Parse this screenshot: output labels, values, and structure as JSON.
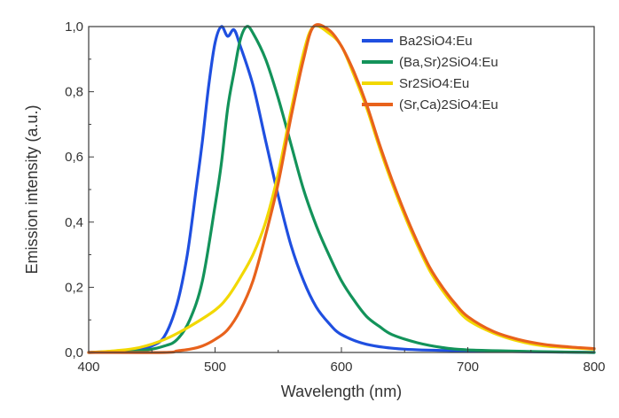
{
  "chart_data": {
    "type": "line",
    "xlabel": "Wavelength (nm)",
    "ylabel": "Emission intensity (a.u.)",
    "xlim": [
      400,
      800
    ],
    "ylim": [
      0.0,
      1.0
    ],
    "x_ticks": [
      "400",
      "500",
      "600",
      "700",
      "800"
    ],
    "y_ticks": [
      "0,0",
      "0,2",
      "0,4",
      "0,6",
      "0,8",
      "1,0"
    ],
    "grid": false,
    "legend_position": "top-right",
    "series": [
      {
        "name": "Ba2SiO4:Eu",
        "color": "#1f4fe0",
        "points": [
          [
            400,
            0.0
          ],
          [
            430,
            0.005
          ],
          [
            440,
            0.01
          ],
          [
            450,
            0.02
          ],
          [
            460,
            0.05
          ],
          [
            470,
            0.15
          ],
          [
            478,
            0.3
          ],
          [
            485,
            0.5
          ],
          [
            490,
            0.65
          ],
          [
            495,
            0.82
          ],
          [
            500,
            0.95
          ],
          [
            505,
            1.0
          ],
          [
            510,
            0.97
          ],
          [
            515,
            0.99
          ],
          [
            520,
            0.94
          ],
          [
            530,
            0.82
          ],
          [
            540,
            0.65
          ],
          [
            550,
            0.48
          ],
          [
            560,
            0.33
          ],
          [
            570,
            0.22
          ],
          [
            580,
            0.14
          ],
          [
            590,
            0.09
          ],
          [
            600,
            0.055
          ],
          [
            620,
            0.025
          ],
          [
            650,
            0.01
          ],
          [
            700,
            0.005
          ],
          [
            800,
            0.0
          ]
        ]
      },
      {
        "name": "(Ba,Sr)2SiO4:Eu",
        "color": "#13935a",
        "points": [
          [
            400,
            0.0
          ],
          [
            440,
            0.005
          ],
          [
            460,
            0.02
          ],
          [
            470,
            0.04
          ],
          [
            480,
            0.1
          ],
          [
            490,
            0.22
          ],
          [
            500,
            0.45
          ],
          [
            505,
            0.58
          ],
          [
            510,
            0.75
          ],
          [
            515,
            0.86
          ],
          [
            520,
            0.96
          ],
          [
            525,
            1.0
          ],
          [
            530,
            0.98
          ],
          [
            540,
            0.9
          ],
          [
            550,
            0.78
          ],
          [
            560,
            0.64
          ],
          [
            570,
            0.5
          ],
          [
            580,
            0.39
          ],
          [
            590,
            0.3
          ],
          [
            600,
            0.22
          ],
          [
            610,
            0.16
          ],
          [
            620,
            0.11
          ],
          [
            630,
            0.08
          ],
          [
            640,
            0.055
          ],
          [
            660,
            0.03
          ],
          [
            680,
            0.015
          ],
          [
            700,
            0.008
          ],
          [
            750,
            0.003
          ],
          [
            800,
            0.0
          ]
        ]
      },
      {
        "name": "Sr2SiO4:Eu",
        "color": "#f2d800",
        "points": [
          [
            400,
            0.0
          ],
          [
            420,
            0.005
          ],
          [
            440,
            0.015
          ],
          [
            460,
            0.04
          ],
          [
            480,
            0.08
          ],
          [
            500,
            0.13
          ],
          [
            510,
            0.17
          ],
          [
            520,
            0.23
          ],
          [
            530,
            0.3
          ],
          [
            540,
            0.4
          ],
          [
            550,
            0.55
          ],
          [
            560,
            0.74
          ],
          [
            570,
            0.92
          ],
          [
            578,
            1.0
          ],
          [
            590,
            0.98
          ],
          [
            600,
            0.94
          ],
          [
            610,
            0.85
          ],
          [
            620,
            0.75
          ],
          [
            630,
            0.63
          ],
          [
            640,
            0.52
          ],
          [
            650,
            0.42
          ],
          [
            660,
            0.33
          ],
          [
            670,
            0.25
          ],
          [
            680,
            0.19
          ],
          [
            690,
            0.14
          ],
          [
            700,
            0.1
          ],
          [
            720,
            0.06
          ],
          [
            740,
            0.035
          ],
          [
            760,
            0.02
          ],
          [
            780,
            0.015
          ],
          [
            800,
            0.01
          ]
        ]
      },
      {
        "name": "(Sr,Ca)2SiO4:Eu",
        "color": "#e8621c",
        "points": [
          [
            400,
            0.0
          ],
          [
            460,
            0.0
          ],
          [
            470,
            0.005
          ],
          [
            480,
            0.01
          ],
          [
            490,
            0.02
          ],
          [
            500,
            0.04
          ],
          [
            510,
            0.07
          ],
          [
            520,
            0.13
          ],
          [
            530,
            0.22
          ],
          [
            540,
            0.36
          ],
          [
            550,
            0.52
          ],
          [
            560,
            0.72
          ],
          [
            570,
            0.9
          ],
          [
            578,
            1.0
          ],
          [
            590,
            0.99
          ],
          [
            600,
            0.94
          ],
          [
            610,
            0.86
          ],
          [
            620,
            0.76
          ],
          [
            630,
            0.64
          ],
          [
            640,
            0.53
          ],
          [
            650,
            0.43
          ],
          [
            660,
            0.34
          ],
          [
            670,
            0.26
          ],
          [
            680,
            0.2
          ],
          [
            690,
            0.15
          ],
          [
            700,
            0.11
          ],
          [
            720,
            0.065
          ],
          [
            740,
            0.04
          ],
          [
            760,
            0.025
          ],
          [
            780,
            0.017
          ],
          [
            800,
            0.012
          ]
        ]
      }
    ]
  }
}
